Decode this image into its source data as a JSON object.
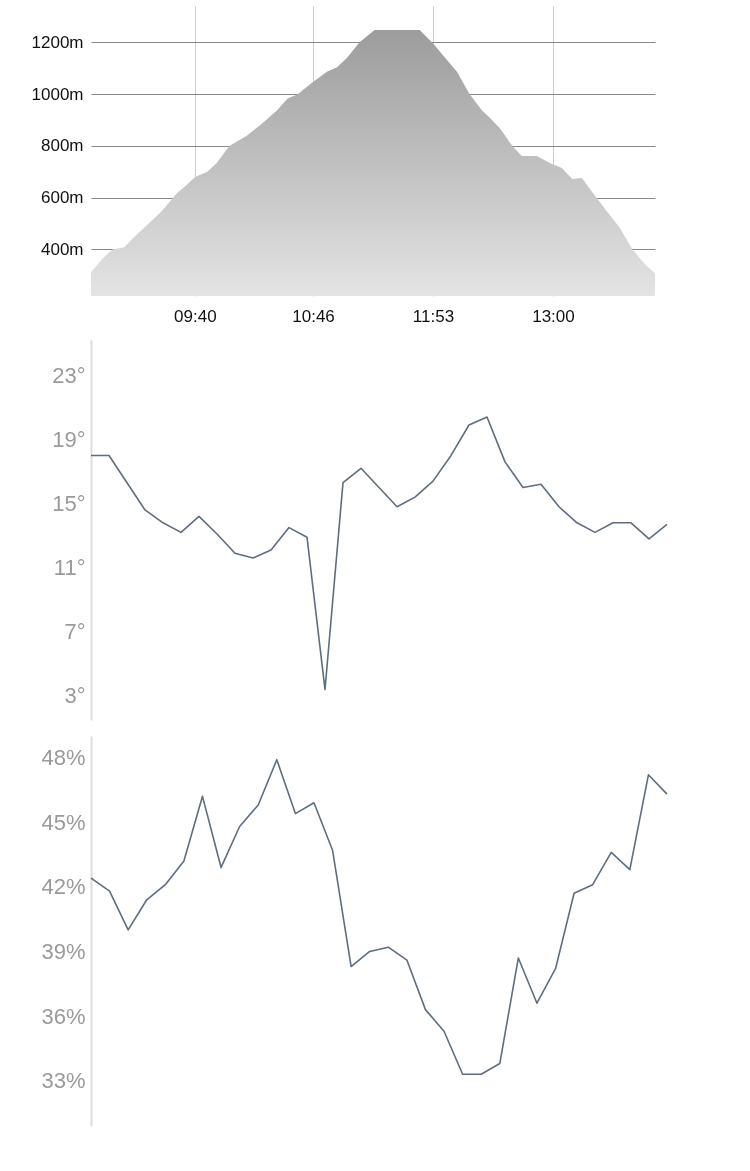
{
  "chart_data": [
    {
      "type": "area",
      "color": "#9c9c9c",
      "grid": true,
      "x": [
        8.7,
        8.8,
        8.9,
        9.01,
        9.08,
        9.22,
        9.36,
        9.5,
        9.59,
        9.67,
        9.78,
        9.87,
        9.99,
        10.15,
        10.29,
        10.43,
        10.53,
        10.62,
        10.76,
        10.9,
        10.99,
        11.08,
        11.2,
        11.34,
        11.76,
        11.89,
        12.0,
        12.11,
        12.22,
        12.34,
        12.41,
        12.51,
        12.62,
        12.71,
        12.85,
        12.99,
        13.08,
        13.18,
        13.27,
        13.36,
        13.5,
        13.62,
        13.74,
        13.85,
        13.95
      ],
      "values": [
        311,
        361,
        400,
        408,
        439,
        493,
        548,
        617,
        649,
        680,
        699,
        734,
        800,
        839,
        885,
        936,
        983,
        998,
        1045,
        1087,
        1103,
        1138,
        1200,
        1247,
        1247,
        1192,
        1138,
        1084,
        1002,
        936,
        909,
        866,
        800,
        761,
        761,
        730,
        715,
        672,
        676,
        625,
        548,
        485,
        400,
        346,
        307
      ],
      "xlim": [
        8.7,
        13.95
      ],
      "xticks": [
        {
          "value": 9.6667,
          "label": "09:40"
        },
        {
          "value": 10.7667,
          "label": "10:46"
        },
        {
          "value": 11.8833,
          "label": "11:53"
        },
        {
          "value": 13.0,
          "label": "13:00"
        }
      ],
      "ylim": [
        220,
        1340
      ],
      "yticks": [
        {
          "value": 400,
          "label": "400m"
        },
        {
          "value": 600,
          "label": "600m"
        },
        {
          "value": 800,
          "label": "800m"
        },
        {
          "value": 1000,
          "label": "1000m"
        },
        {
          "value": 1200,
          "label": "1200m"
        }
      ]
    },
    {
      "type": "line",
      "color": "#5e6e7e",
      "tick_labels": "y",
      "categories": [
        null,
        null,
        null,
        null,
        null,
        null,
        null,
        null,
        null,
        null,
        null,
        null,
        null,
        null,
        null,
        null,
        null,
        null,
        null,
        null,
        null,
        null,
        null,
        null,
        null,
        null,
        null,
        null,
        null,
        null,
        null,
        null,
        null
      ],
      "values": [
        18.0,
        18.0,
        16.3,
        14.6,
        13.8,
        13.2,
        14.2,
        13.1,
        11.9,
        11.6,
        12.1,
        13.5,
        12.9,
        3.4,
        16.3,
        17.2,
        16.0,
        14.8,
        15.4,
        16.4,
        18.0,
        19.9,
        20.4,
        17.6,
        16.0,
        16.2,
        14.8,
        13.8,
        13.2,
        13.8,
        13.8,
        12.8,
        13.7
      ],
      "ylim": [
        1.5,
        25.2
      ],
      "yticks": [
        {
          "value": 3,
          "label": "3°"
        },
        {
          "value": 7,
          "label": "7°"
        },
        {
          "value": 11,
          "label": "11°"
        },
        {
          "value": 15,
          "label": "15°"
        },
        {
          "value": 19,
          "label": "19°"
        },
        {
          "value": 23,
          "label": "23°"
        }
      ]
    },
    {
      "type": "line",
      "tick_labels": "y",
      "categories": [
        null,
        null,
        null,
        null,
        null,
        null,
        null,
        null,
        null,
        null,
        null,
        null,
        null,
        null,
        null,
        null,
        null,
        null,
        null,
        null,
        null,
        null,
        null,
        null,
        null,
        null,
        null,
        null,
        null,
        null,
        null,
        null
      ],
      "series": [
        {
          "color": "#5e6e7e",
          "values": [
            42.4,
            41.8,
            40.0,
            41.4,
            42.1,
            43.2,
            46.2,
            42.9,
            44.8,
            45.8,
            47.9,
            45.4,
            45.9,
            43.7,
            38.3,
            39.0,
            39.2,
            38.6,
            36.3,
            35.3,
            33.3,
            33.3,
            33.8,
            38.7,
            36.6,
            38.2,
            41.7,
            42.1,
            43.6,
            42.8,
            47.2,
            46.3
          ]
        }
      ],
      "ylim": [
        30.9,
        49
      ],
      "yticks": [
        {
          "value": 33,
          "label": "33%"
        },
        {
          "value": 36,
          "label": "36%"
        },
        {
          "value": 39,
          "label": "39%"
        },
        {
          "value": 42,
          "label": "42%"
        },
        {
          "value": 45,
          "label": "45%"
        },
        {
          "value": 48,
          "label": "48%"
        }
      ]
    }
  ]
}
